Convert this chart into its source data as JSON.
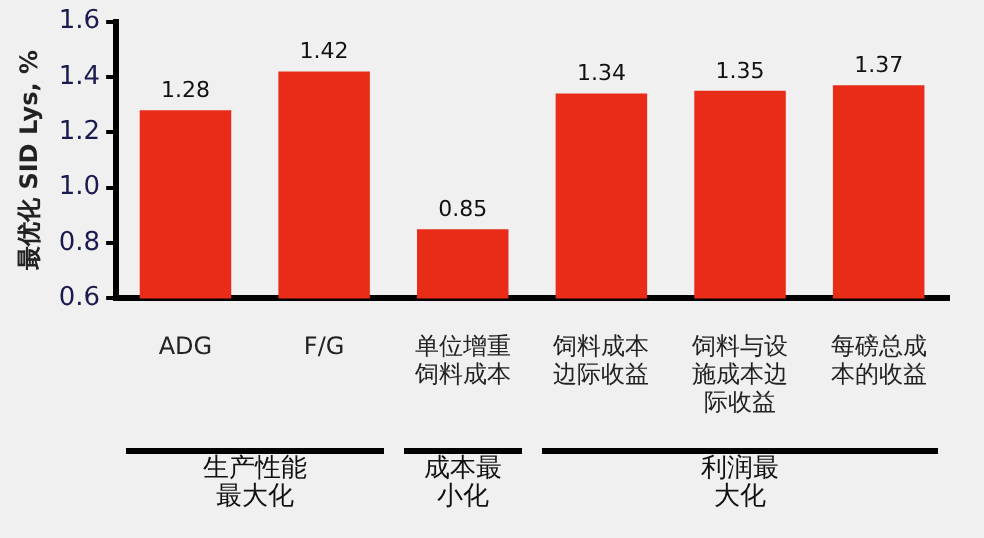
{
  "chart_data": {
    "type": "bar",
    "ylabel": "最优化 SID Lys, %",
    "categories": [
      "ADG",
      "F/G",
      "单位增重饲料成本",
      "饲料成本边际收益",
      "饲料与设施成本边际收益",
      "每磅总成本的收益"
    ],
    "values": [
      1.28,
      1.42,
      0.85,
      1.34,
      1.35,
      1.37
    ],
    "color": "#e82c18",
    "ylim": [
      0.6,
      1.6
    ],
    "yticks": [
      0.6,
      0.8,
      {
        "value": 1,
        "label": "1.0"
      },
      1.2,
      1.4,
      1.6
    ],
    "grid": false,
    "data_labels": true,
    "annotations": [
      "生产性能最大化",
      "成本最小化",
      "利润最大化"
    ]
  }
}
